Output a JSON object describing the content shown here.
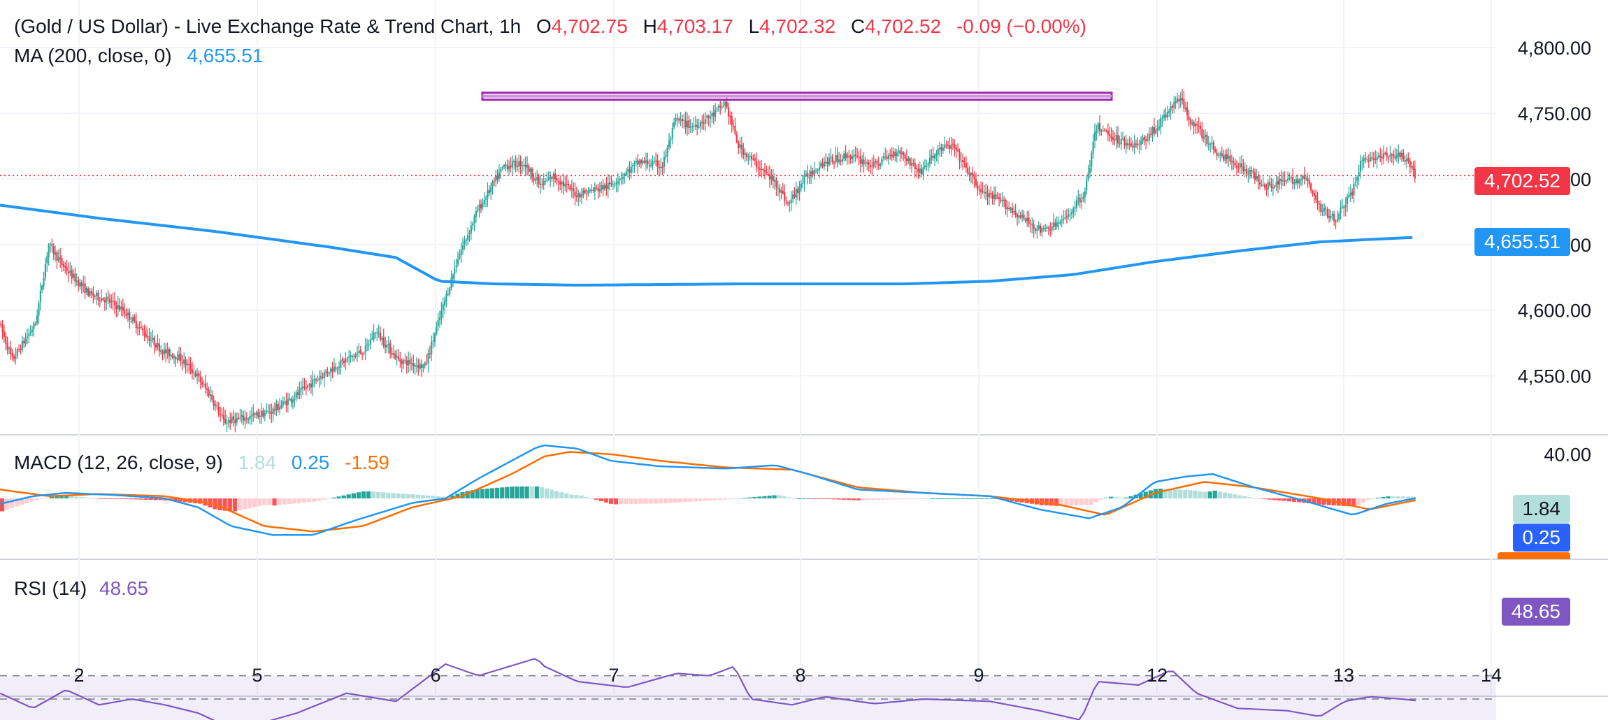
{
  "header": {
    "title": "(Gold / US Dollar) - Live Exchange Rate & Trend Chart, 1h",
    "open_label": "O",
    "open": "4,702.75",
    "high_label": "H",
    "high": "4,703.17",
    "low_label": "L",
    "low": "4,702.32",
    "close_label": "C",
    "close": "4,702.52",
    "change": "-0.09 (−0.00%)",
    "ma_label": "MA (200, close, 0)",
    "ma_value": "4,655.51",
    "macd_label": "MACD (12, 26, close, 9)",
    "macd_hist": "1.84",
    "macd_line": "0.25",
    "macd_signal": "-1.59",
    "rsi_label": "RSI (14)",
    "rsi_value": "48.65"
  },
  "tags": {
    "price": "4,702.52",
    "ma": "4,655.51",
    "macd_hist": "1.84",
    "macd_line": "0.25",
    "rsi": "48.65"
  },
  "colors": {
    "up": "#26a69a",
    "down": "#f23645",
    "ma": "#2196f3",
    "macd": "#2196f3",
    "signal": "#ff6d00",
    "rsi": "#7e57c2",
    "resistance": "#9c27b0"
  },
  "chart_data": [
    {
      "type": "candlestick",
      "title": "(Gold / US Dollar) - Live Exchange Rate & Trend Chart, 1h",
      "x_ticks": [
        "2",
        "5",
        "6",
        "7",
        "8",
        "9",
        "12",
        "13",
        "14"
      ],
      "y_ticks": [
        "4,550.00",
        "4,600.00",
        "4,650.00",
        "4,700.00",
        "4,750.00",
        "4,800.00"
      ],
      "ylim": [
        4505,
        4815
      ],
      "resistance_level": 4763,
      "last_price": 4702.52,
      "ma200_last": 4655.51,
      "price_path": [
        [
          0,
          4590
        ],
        [
          8,
          4562
        ],
        [
          22,
          4590
        ],
        [
          30,
          4650
        ],
        [
          38,
          4635
        ],
        [
          45,
          4625
        ],
        [
          55,
          4612
        ],
        [
          65,
          4608
        ],
        [
          75,
          4600
        ],
        [
          90,
          4580
        ],
        [
          100,
          4568
        ],
        [
          108,
          4565
        ],
        [
          118,
          4553
        ],
        [
          128,
          4535
        ],
        [
          136,
          4515
        ],
        [
          150,
          4518
        ],
        [
          165,
          4523
        ],
        [
          180,
          4535
        ],
        [
          195,
          4550
        ],
        [
          210,
          4562
        ],
        [
          222,
          4570
        ],
        [
          228,
          4584
        ],
        [
          242,
          4562
        ],
        [
          258,
          4557
        ],
        [
          266,
          4590
        ],
        [
          278,
          4640
        ],
        [
          290,
          4676
        ],
        [
          306,
          4710
        ],
        [
          318,
          4712
        ],
        [
          328,
          4695
        ],
        [
          336,
          4702
        ],
        [
          350,
          4688
        ],
        [
          370,
          4695
        ],
        [
          388,
          4713
        ],
        [
          402,
          4710
        ],
        [
          410,
          4745
        ],
        [
          420,
          4740
        ],
        [
          432,
          4748
        ],
        [
          440,
          4758
        ],
        [
          448,
          4725
        ],
        [
          458,
          4712
        ],
        [
          472,
          4695
        ],
        [
          478,
          4680
        ],
        [
          488,
          4700
        ],
        [
          498,
          4712
        ],
        [
          515,
          4718
        ],
        [
          530,
          4710
        ],
        [
          545,
          4722
        ],
        [
          558,
          4705
        ],
        [
          570,
          4723
        ],
        [
          578,
          4725
        ],
        [
          584,
          4712
        ],
        [
          595,
          4690
        ],
        [
          608,
          4682
        ],
        [
          620,
          4670
        ],
        [
          632,
          4660
        ],
        [
          645,
          4668
        ],
        [
          658,
          4690
        ],
        [
          665,
          4740
        ],
        [
          678,
          4730
        ],
        [
          690,
          4725
        ],
        [
          702,
          4740
        ],
        [
          715,
          4762
        ],
        [
          722,
          4745
        ],
        [
          738,
          4720
        ],
        [
          752,
          4710
        ],
        [
          768,
          4695
        ],
        [
          778,
          4698
        ],
        [
          792,
          4700
        ],
        [
          800,
          4678
        ],
        [
          810,
          4670
        ],
        [
          820,
          4690
        ],
        [
          826,
          4715
        ],
        [
          840,
          4717
        ],
        [
          850,
          4718
        ],
        [
          858,
          4703
        ]
      ],
      "ma200_path": [
        [
          0,
          4680
        ],
        [
          60,
          4670
        ],
        [
          130,
          4660
        ],
        [
          200,
          4648
        ],
        [
          240,
          4640
        ],
        [
          266,
          4622
        ],
        [
          300,
          4620
        ],
        [
          350,
          4619
        ],
        [
          450,
          4620
        ],
        [
          550,
          4620
        ],
        [
          600,
          4622
        ],
        [
          650,
          4627
        ],
        [
          700,
          4637
        ],
        [
          750,
          4645
        ],
        [
          800,
          4652
        ],
        [
          858,
          4655.51
        ]
      ]
    },
    {
      "type": "line",
      "title": "MACD (12, 26, close, 9)",
      "series": [
        {
          "name": "MACD",
          "value": 0.25
        },
        {
          "name": "Signal",
          "value": -1.59
        },
        {
          "name": "Histogram",
          "value": 1.84
        }
      ],
      "ylim": [
        -55,
        55
      ],
      "y_ticks": [
        "40.00"
      ],
      "macd_path": [
        [
          0,
          -5
        ],
        [
          20,
          2
        ],
        [
          40,
          5
        ],
        [
          70,
          3
        ],
        [
          100,
          0
        ],
        [
          120,
          -8
        ],
        [
          140,
          -25
        ],
        [
          165,
          -33
        ],
        [
          190,
          -33
        ],
        [
          215,
          -20
        ],
        [
          250,
          -4
        ],
        [
          270,
          0
        ],
        [
          290,
          18
        ],
        [
          310,
          34
        ],
        [
          325,
          46
        ],
        [
          330,
          48
        ],
        [
          350,
          45
        ],
        [
          370,
          34
        ],
        [
          400,
          29
        ],
        [
          440,
          27
        ],
        [
          470,
          30
        ],
        [
          490,
          22
        ],
        [
          520,
          8
        ],
        [
          560,
          5
        ],
        [
          600,
          2
        ],
        [
          630,
          -10
        ],
        [
          660,
          -18
        ],
        [
          680,
          -8
        ],
        [
          700,
          15
        ],
        [
          720,
          20
        ],
        [
          735,
          22
        ],
        [
          760,
          10
        ],
        [
          790,
          -2
        ],
        [
          820,
          -15
        ],
        [
          840,
          -5
        ],
        [
          858,
          0.25
        ]
      ],
      "signal_path": [
        [
          0,
          8
        ],
        [
          30,
          2
        ],
        [
          60,
          4
        ],
        [
          100,
          2
        ],
        [
          130,
          -5
        ],
        [
          160,
          -25
        ],
        [
          190,
          -30
        ],
        [
          220,
          -25
        ],
        [
          250,
          -8
        ],
        [
          280,
          2
        ],
        [
          310,
          22
        ],
        [
          330,
          38
        ],
        [
          345,
          42
        ],
        [
          370,
          40
        ],
        [
          400,
          34
        ],
        [
          440,
          28
        ],
        [
          480,
          26
        ],
        [
          520,
          10
        ],
        [
          560,
          5
        ],
        [
          600,
          2
        ],
        [
          640,
          -5
        ],
        [
          670,
          -15
        ],
        [
          700,
          5
        ],
        [
          730,
          15
        ],
        [
          760,
          10
        ],
        [
          800,
          0
        ],
        [
          830,
          -10
        ],
        [
          858,
          -1.59
        ]
      ]
    },
    {
      "type": "line",
      "title": "RSI (14)",
      "series": [
        {
          "name": "RSI",
          "value": 48.65
        }
      ],
      "ylim": [
        20,
        80
      ],
      "bands": [
        30,
        50,
        70
      ],
      "rsi_path": [
        [
          0,
          55
        ],
        [
          20,
          42
        ],
        [
          40,
          58
        ],
        [
          60,
          45
        ],
        [
          80,
          50
        ],
        [
          100,
          45
        ],
        [
          120,
          38
        ],
        [
          140,
          25
        ],
        [
          160,
          30
        ],
        [
          180,
          38
        ],
        [
          210,
          55
        ],
        [
          240,
          48
        ],
        [
          270,
          80
        ],
        [
          290,
          70
        ],
        [
          325,
          85
        ],
        [
          330,
          78
        ],
        [
          350,
          65
        ],
        [
          380,
          60
        ],
        [
          410,
          72
        ],
        [
          430,
          70
        ],
        [
          445,
          78
        ],
        [
          455,
          50
        ],
        [
          480,
          45
        ],
        [
          500,
          52
        ],
        [
          530,
          46
        ],
        [
          560,
          50
        ],
        [
          600,
          48
        ],
        [
          630,
          40
        ],
        [
          655,
          32
        ],
        [
          665,
          65
        ],
        [
          690,
          62
        ],
        [
          710,
          75
        ],
        [
          725,
          55
        ],
        [
          750,
          42
        ],
        [
          780,
          40
        ],
        [
          800,
          35
        ],
        [
          815,
          48
        ],
        [
          830,
          52
        ],
        [
          850,
          50
        ],
        [
          858,
          48.65
        ]
      ]
    }
  ]
}
